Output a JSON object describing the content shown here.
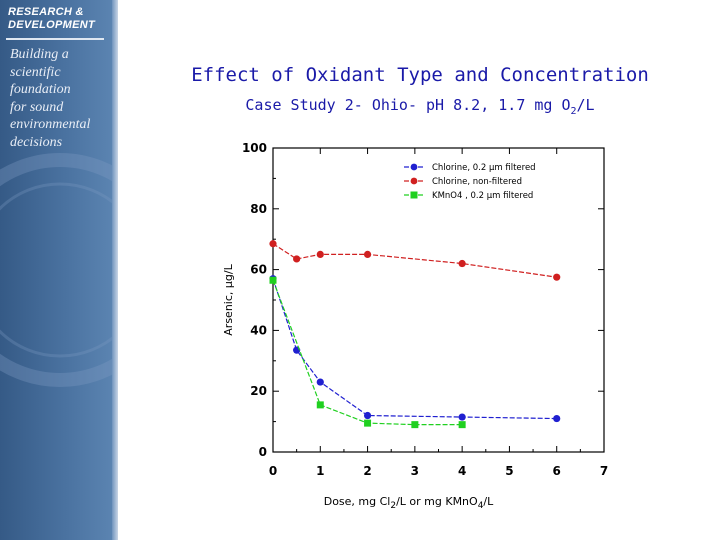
{
  "sidebar": {
    "heading_line1": "RESEARCH &",
    "heading_line2": "DEVELOPMENT",
    "tagline": [
      "Building a",
      "scientific",
      "foundation",
      "for sound",
      "environmental",
      "decisions"
    ]
  },
  "slide": {
    "title": "Effect of Oxidant Type and Concentration",
    "subtitle_main": "Case Study 2- Ohio- pH 8.2, 1.7 mg O",
    "subtitle_sub": "2",
    "subtitle_end": "/L"
  },
  "chart_data": {
    "type": "line",
    "xlim": [
      0,
      7
    ],
    "ylim": [
      0,
      100
    ],
    "x_ticks": [
      "0",
      "1",
      "2",
      "3",
      "4",
      "5",
      "6",
      "7"
    ],
    "y_ticks": [
      "0",
      "20",
      "40",
      "60",
      "80",
      "100"
    ],
    "ylabel": "Arsenic, µg/L",
    "xlabel_parts": [
      "Dose, mg Cl",
      "2",
      "/L or mg KMnO",
      "4",
      "/L"
    ],
    "series": [
      {
        "name": "Chlorine, 0.2 µm filtered",
        "color": "#2020d0",
        "marker": "circle",
        "x": [
          0,
          0.5,
          1,
          2,
          4,
          6
        ],
        "y": [
          57,
          33.5,
          23,
          12,
          11.5,
          11
        ]
      },
      {
        "name": "Chlorine, non-filtered",
        "color": "#d02020",
        "marker": "circle",
        "x": [
          0,
          0.5,
          1,
          2,
          4,
          6
        ],
        "y": [
          68.5,
          63.5,
          65,
          65,
          62,
          57.5
        ]
      },
      {
        "name": "KMnO4 , 0.2 µm filtered",
        "color": "#20d020",
        "marker": "square",
        "x": [
          0,
          1,
          2,
          3,
          4
        ],
        "y": [
          56.5,
          15.5,
          9.5,
          9,
          9
        ]
      }
    ],
    "legend_position": "top-right"
  }
}
